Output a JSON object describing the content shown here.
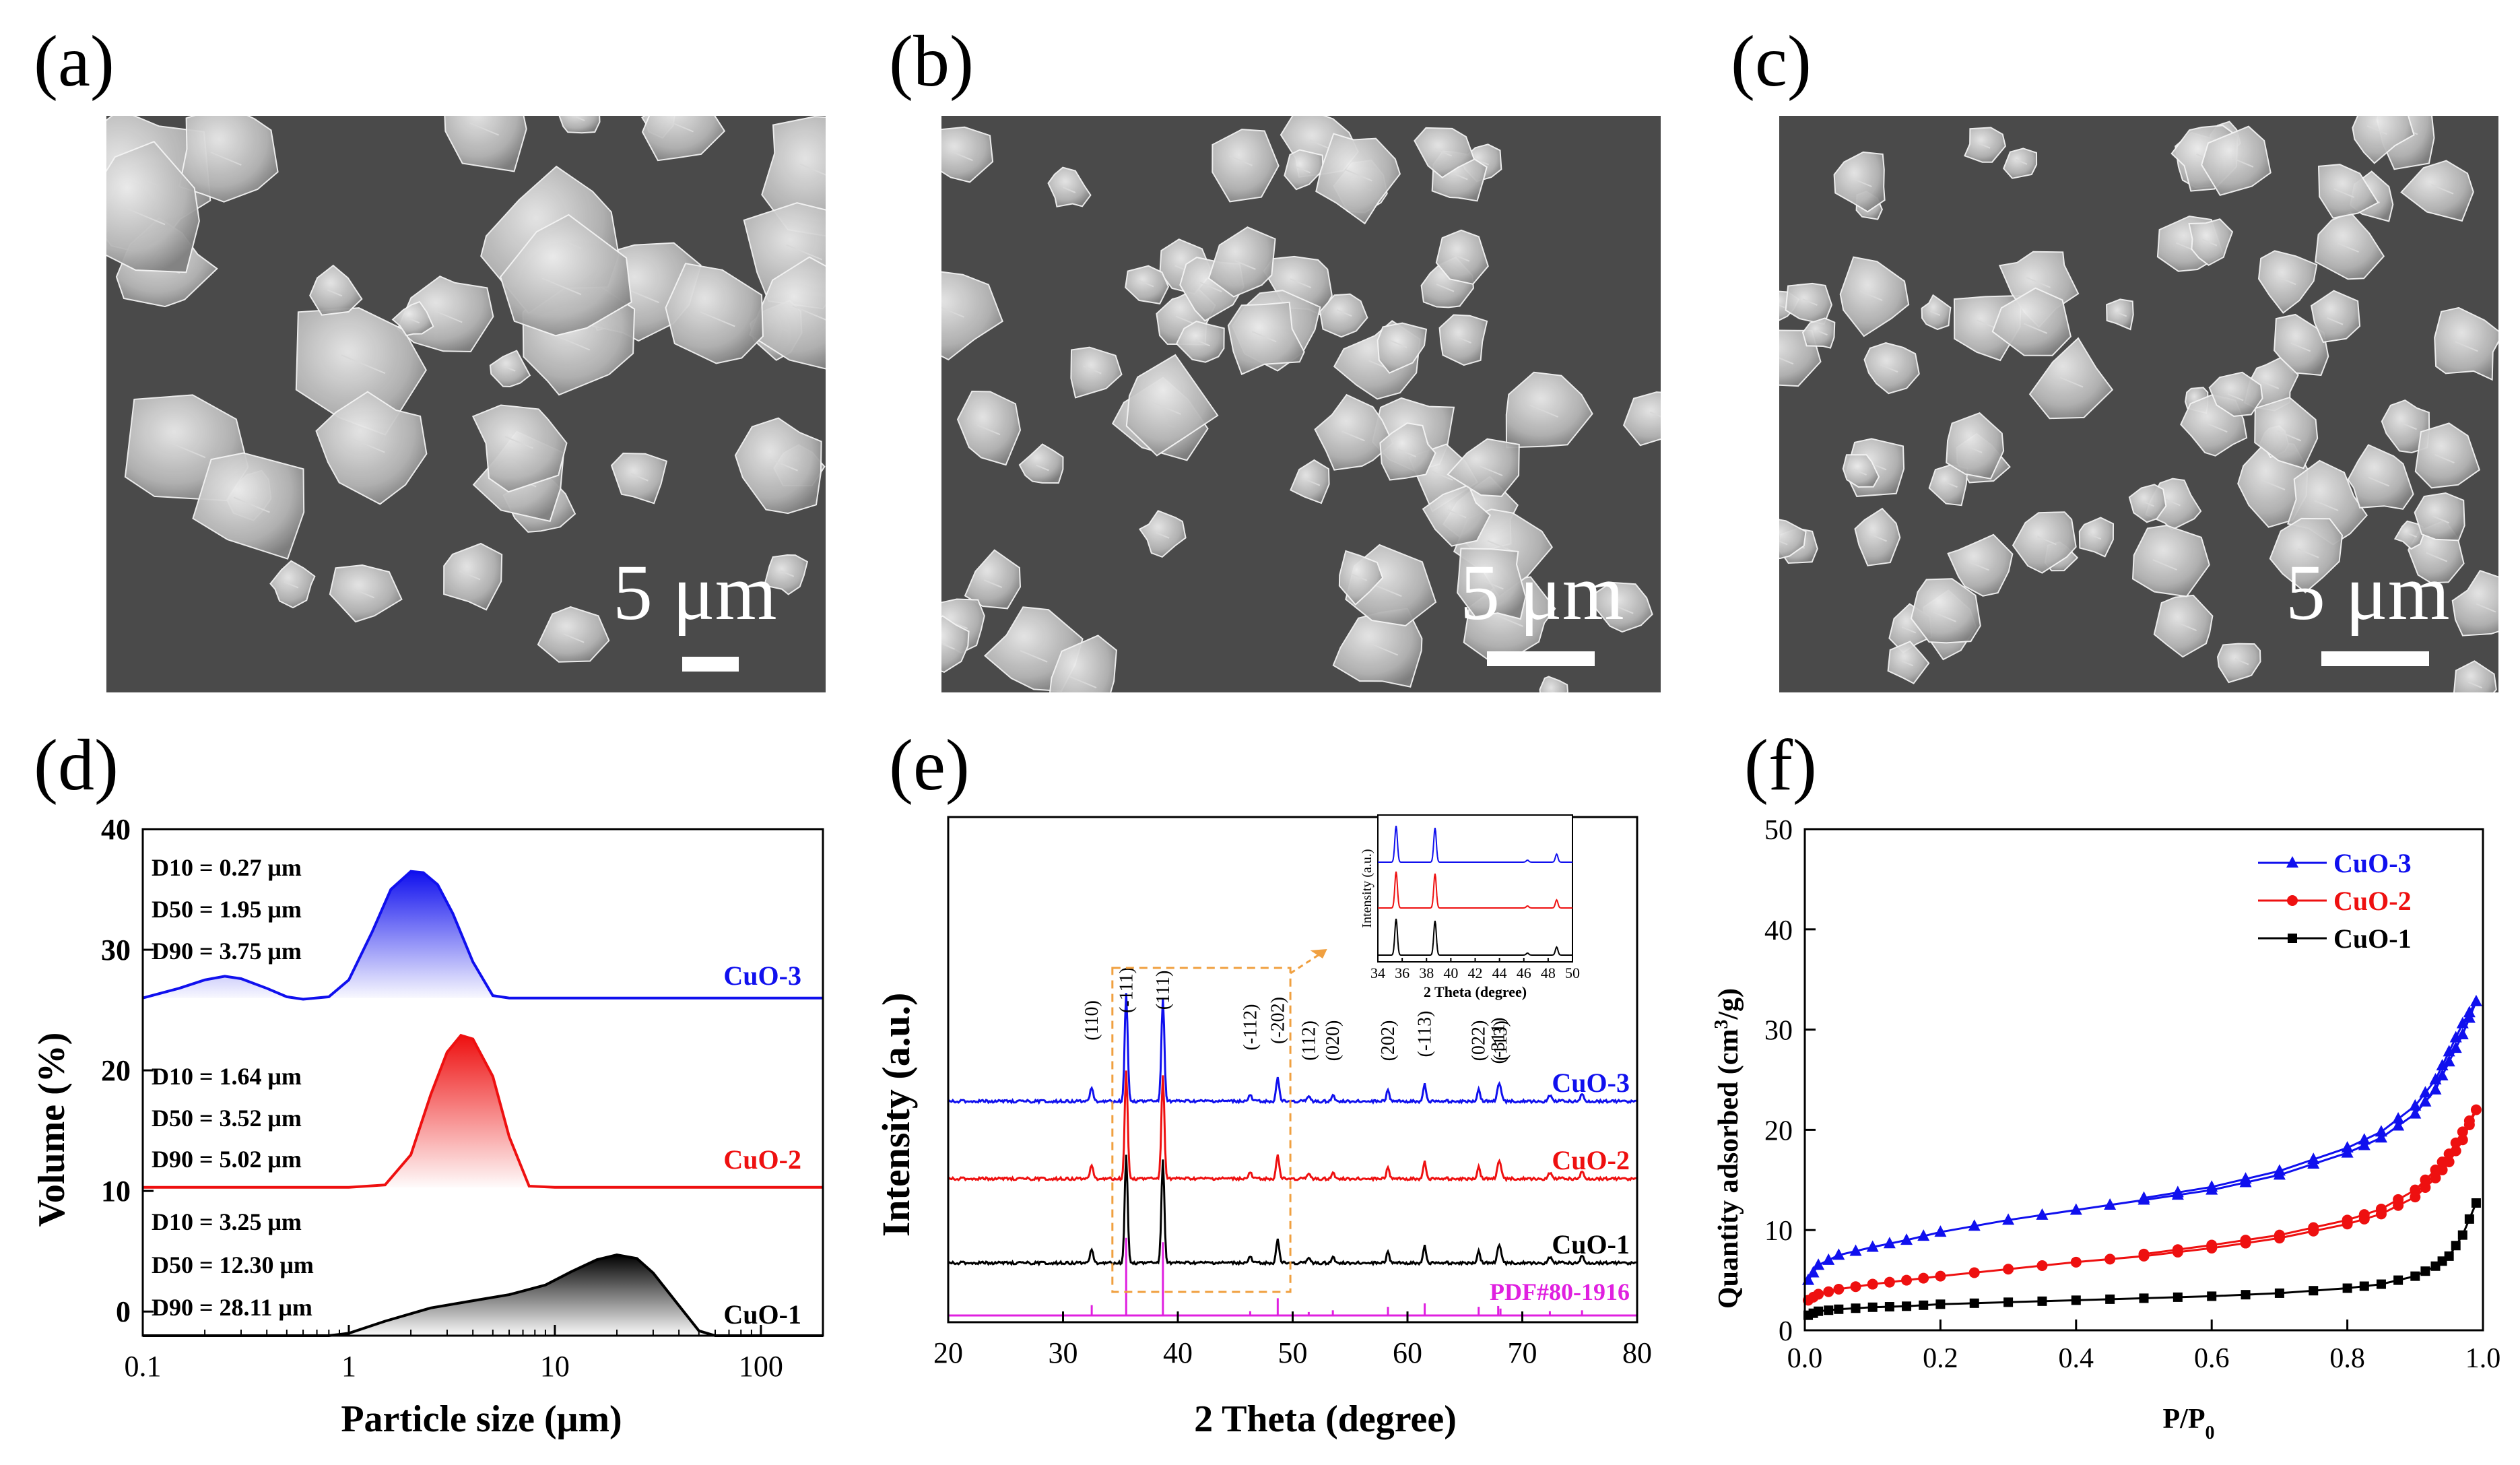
{
  "panels": {
    "a": {
      "label": "(a)",
      "scale_text": "5 μm"
    },
    "b": {
      "label": "(b)",
      "scale_text": "5 μm"
    },
    "c": {
      "label": "(c)",
      "scale_text": "5 μm"
    },
    "d": {
      "label": "(d)"
    },
    "e": {
      "label": "(e)"
    },
    "f": {
      "label": "(f)"
    }
  },
  "colors": {
    "cuo3": "#1010ee",
    "cuo2": "#ee1010",
    "cuo1": "#000000",
    "pdf": "#e020e0",
    "inset_box": "#f0a040",
    "sem_bg": "#4a4a4a"
  },
  "chart_data": [
    {
      "id": "d",
      "type": "area",
      "title": "",
      "xlabel": "Particle size (μm)",
      "ylabel": "Volume (%)",
      "xscale": "log",
      "xlim": [
        0.1,
        200
      ],
      "ylim": [
        -2,
        40
      ],
      "xticks": [
        {
          "v": 0.1,
          "label": "0.1"
        },
        {
          "v": 1,
          "label": "1"
        },
        {
          "v": 10,
          "label": "10"
        },
        {
          "v": 100,
          "label": "100"
        }
      ],
      "yticks": [
        {
          "v": 0,
          "label": "0"
        },
        {
          "v": 10,
          "label": "10"
        },
        {
          "v": 20,
          "label": "20"
        },
        {
          "v": 30,
          "label": "30"
        },
        {
          "v": 40,
          "label": "40"
        }
      ],
      "series": [
        {
          "name": "CuO-3",
          "color": "#1010ee",
          "baseline": 26,
          "x": [
            0.1,
            0.15,
            0.2,
            0.25,
            0.3,
            0.4,
            0.5,
            0.6,
            0.8,
            1.0,
            1.3,
            1.6,
            2.0,
            2.3,
            2.7,
            3.2,
            4.0,
            5.0,
            6.0,
            10,
            100,
            200
          ],
          "y": [
            26,
            26.8,
            27.5,
            27.8,
            27.6,
            26.8,
            26.1,
            25.9,
            26.1,
            27.5,
            31.5,
            35,
            36.5,
            36.4,
            35.4,
            33,
            29,
            26.2,
            26,
            26,
            26,
            26
          ],
          "stats": [
            "D10 = 0.27 μm",
            "D50 = 1.95 μm",
            "D90 = 3.75 μm"
          ]
        },
        {
          "name": "CuO-2",
          "color": "#ee1010",
          "baseline": 10.3,
          "x": [
            0.1,
            1,
            1.5,
            2.0,
            2.5,
            3.0,
            3.5,
            4.0,
            5.0,
            6.0,
            7.5,
            10,
            100,
            200
          ],
          "y": [
            10.3,
            10.3,
            10.5,
            13,
            18,
            21.5,
            22.9,
            22.6,
            19.5,
            14.5,
            10.4,
            10.3,
            10.3,
            10.3
          ],
          "stats": [
            "D10 = 1.64 μm",
            "D50 = 3.52 μm",
            "D90 = 5.02 μm"
          ]
        },
        {
          "name": "CuO-1",
          "color": "#000000",
          "baseline": -2,
          "x": [
            0.1,
            0.8,
            1.0,
            1.5,
            2.5,
            4,
            6,
            9,
            12,
            16,
            20,
            25,
            30,
            40,
            50,
            60,
            100,
            200
          ],
          "y": [
            -2,
            -2,
            -1.8,
            -0.8,
            0.3,
            0.9,
            1.4,
            2.2,
            3.3,
            4.3,
            4.7,
            4.4,
            3.2,
            0.5,
            -1.6,
            -2,
            -2,
            -2
          ],
          "stats": [
            "D10 = 3.25 μm",
            "D50 = 12.30 μm",
            "D90 = 28.11 μm"
          ]
        }
      ]
    },
    {
      "id": "e",
      "type": "line",
      "xlabel": "2 Theta (degree)",
      "ylabel": "Intensity (a.u.)",
      "xlim": [
        20,
        80
      ],
      "xticks": [
        {
          "v": 20,
          "label": "20"
        },
        {
          "v": 30,
          "label": "30"
        },
        {
          "v": 40,
          "label": "40"
        },
        {
          "v": 50,
          "label": "50"
        },
        {
          "v": 60,
          "label": "60"
        },
        {
          "v": 70,
          "label": "70"
        },
        {
          "v": 80,
          "label": "80"
        }
      ],
      "series": [
        {
          "name": "CuO-3",
          "color": "#1010ee",
          "offset": 3.0,
          "scale": 1.0
        },
        {
          "name": "CuO-2",
          "color": "#ee1010",
          "offset": 2.0,
          "scale": 1.0
        },
        {
          "name": "CuO-1",
          "color": "#000000",
          "offset": 1.0,
          "scale": 1.0
        },
        {
          "name": "PDF#80-1916",
          "color": "#e020e0",
          "offset": 0.0,
          "scale": 0.8,
          "type": "sticks"
        }
      ],
      "peaks": [
        {
          "x": 32.5,
          "h": 0.12,
          "hkl": "(110)"
        },
        {
          "x": 35.5,
          "h": 0.9,
          "hkl": "(-111)"
        },
        {
          "x": 38.7,
          "h": 0.85,
          "hkl": "(111)"
        },
        {
          "x": 46.3,
          "h": 0.05,
          "hkl": "(-112)"
        },
        {
          "x": 48.7,
          "h": 0.2,
          "hkl": "(-202)"
        },
        {
          "x": 51.4,
          "h": 0.04,
          "hkl": "(112)"
        },
        {
          "x": 53.5,
          "h": 0.06,
          "hkl": "(020)"
        },
        {
          "x": 58.3,
          "h": 0.1,
          "hkl": "(202)"
        },
        {
          "x": 61.5,
          "h": 0.14,
          "hkl": "(-113)"
        },
        {
          "x": 66.2,
          "h": 0.1,
          "hkl": "(022)"
        },
        {
          "x": 67.9,
          "h": 0.11,
          "hkl": "(-311)"
        },
        {
          "x": 68.1,
          "h": 0.08,
          "hkl": "(113)"
        },
        {
          "x": 72.4,
          "h": 0.05,
          "hkl": ""
        },
        {
          "x": 75.2,
          "h": 0.06,
          "hkl": ""
        }
      ],
      "inset": {
        "xlabel": "2 Theta (degree)",
        "ylabel": "Intensity (a.u.)",
        "xlim": [
          34,
          50
        ],
        "xticks": [
          {
            "v": 34,
            "label": "34"
          },
          {
            "v": 36,
            "label": "36"
          },
          {
            "v": 38,
            "label": "38"
          },
          {
            "v": 40,
            "label": "40"
          },
          {
            "v": 42,
            "label": "42"
          },
          {
            "v": 44,
            "label": "44"
          },
          {
            "v": 46,
            "label": "46"
          },
          {
            "v": 48,
            "label": "48"
          },
          {
            "v": 50,
            "label": "50"
          }
        ]
      }
    },
    {
      "id": "f",
      "type": "line",
      "xlabel": "P/P",
      "xlabel_sub": "0",
      "ylabel": "Quantity adsorbed (cm",
      "ylabel_sup": "3",
      "ylabel_end": "/g)",
      "xlim": [
        0,
        1.0
      ],
      "ylim": [
        0,
        50
      ],
      "xticks": [
        {
          "v": 0,
          "label": "0.0"
        },
        {
          "v": 0.2,
          "label": "0.2"
        },
        {
          "v": 0.4,
          "label": "0.4"
        },
        {
          "v": 0.6,
          "label": "0.6"
        },
        {
          "v": 0.8,
          "label": "0.8"
        },
        {
          "v": 1.0,
          "label": "1.0"
        }
      ],
      "yticks": [
        {
          "v": 0,
          "label": "0"
        },
        {
          "v": 10,
          "label": "10"
        },
        {
          "v": 20,
          "label": "20"
        },
        {
          "v": 30,
          "label": "30"
        },
        {
          "v": 40,
          "label": "40"
        },
        {
          "v": 50,
          "label": "50"
        }
      ],
      "legend": "top-right",
      "series": [
        {
          "name": "CuO-3",
          "color": "#1010ee",
          "marker": "triangle",
          "x": [
            0.005,
            0.02,
            0.05,
            0.1,
            0.15,
            0.2,
            0.3,
            0.4,
            0.5,
            0.6,
            0.7,
            0.8,
            0.85,
            0.9,
            0.93,
            0.95,
            0.97,
            0.99
          ],
          "y": [
            5,
            6.5,
            7.5,
            8.3,
            9.0,
            9.8,
            11.0,
            12.0,
            13.0,
            14.0,
            15.5,
            17.7,
            19.2,
            21.6,
            24.0,
            26.8,
            29.5,
            32.8
          ],
          "y_des": [
            null,
            null,
            null,
            null,
            null,
            null,
            null,
            null,
            13.2,
            14.3,
            15.9,
            18.2,
            19.8,
            22.4,
            25.0,
            27.8,
            30.6,
            32.8
          ]
        },
        {
          "name": "CuO-2",
          "color": "#ee1010",
          "marker": "circle",
          "x": [
            0.005,
            0.02,
            0.05,
            0.1,
            0.15,
            0.2,
            0.3,
            0.4,
            0.5,
            0.6,
            0.7,
            0.8,
            0.85,
            0.9,
            0.93,
            0.95,
            0.97,
            0.99
          ],
          "y": [
            3,
            3.6,
            4.1,
            4.6,
            5.0,
            5.4,
            6.1,
            6.8,
            7.4,
            8.2,
            9.2,
            10.6,
            11.6,
            13.3,
            15.2,
            16.8,
            19.0,
            22.0
          ],
          "y_des": [
            null,
            null,
            null,
            null,
            null,
            null,
            null,
            null,
            7.6,
            8.5,
            9.5,
            11.0,
            12.1,
            14.0,
            16.0,
            17.6,
            19.8,
            22.0
          ]
        },
        {
          "name": "CuO-1",
          "color": "#000000",
          "marker": "square",
          "x": [
            0.005,
            0.02,
            0.05,
            0.1,
            0.15,
            0.2,
            0.3,
            0.4,
            0.5,
            0.6,
            0.7,
            0.8,
            0.85,
            0.9,
            0.93,
            0.95,
            0.97,
            0.99
          ],
          "y": [
            1.5,
            1.9,
            2.1,
            2.3,
            2.4,
            2.6,
            2.8,
            3.0,
            3.2,
            3.4,
            3.7,
            4.2,
            4.6,
            5.4,
            6.4,
            7.4,
            9.5,
            12.7
          ],
          "y_des": [
            null,
            null,
            null,
            null,
            null,
            null,
            null,
            null,
            null,
            null,
            null,
            null,
            null,
            null,
            null,
            null,
            null,
            null
          ]
        }
      ]
    }
  ]
}
